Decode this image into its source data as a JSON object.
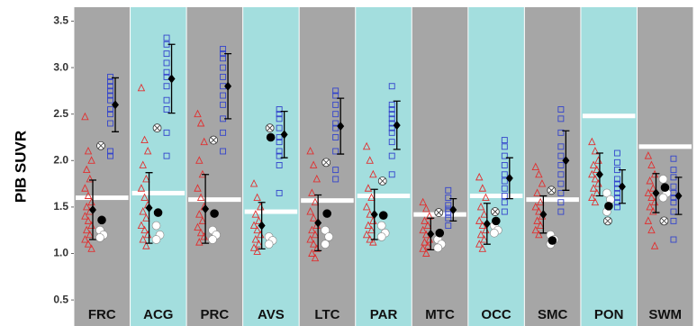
{
  "chart_data": {
    "type": "strip",
    "ylabel": "PIB SUVR",
    "categories": [
      "FRC",
      "ACG",
      "PRC",
      "AVS",
      "LTC",
      "PAR",
      "MTC",
      "OCC",
      "SMC",
      "PON",
      "SWM"
    ],
    "band_colors": [
      "#a6a6a6",
      "#a3dede"
    ],
    "ylim": [
      0.22,
      3.65
    ],
    "yticks": [
      0.5,
      {
        "value": 1,
        "label": "1.0"
      },
      1.5,
      {
        "value": 2,
        "label": "2.0"
      },
      2.5,
      {
        "value": 3,
        "label": "3.0"
      },
      3.5
    ],
    "threshold": {
      "color": "#ffffff",
      "values": [
        1.6,
        1.65,
        1.58,
        1.45,
        1.57,
        1.62,
        1.42,
        1.62,
        1.58,
        2.48,
        2.15
      ]
    },
    "series": [
      {
        "marker": "triangle-open",
        "color": "#e03030",
        "values": [
          [
            2.47,
            2.1,
            2.0,
            1.9,
            1.8,
            1.7,
            1.62,
            1.55,
            1.5,
            1.45,
            1.4,
            1.35,
            1.3,
            1.25,
            1.2,
            1.15,
            1.1,
            1.05
          ],
          [
            2.78,
            2.22,
            2.1,
            1.95,
            1.8,
            1.7,
            1.6,
            1.52,
            1.45,
            1.38,
            1.3,
            1.25,
            1.2,
            1.15,
            1.08
          ],
          [
            2.5,
            2.4,
            2.2,
            2.0,
            1.85,
            1.7,
            1.6,
            1.5,
            1.42,
            1.35,
            1.28,
            1.22,
            1.18,
            1.12
          ],
          [
            1.75,
            1.6,
            1.5,
            1.42,
            1.35,
            1.3,
            1.25,
            1.2,
            1.15,
            1.1,
            1.06,
            1.02
          ],
          [
            2.1,
            1.95,
            1.8,
            1.65,
            1.55,
            1.45,
            1.38,
            1.3,
            1.25,
            1.2,
            1.15,
            1.1,
            1.05,
            1.0,
            0.95
          ],
          [
            2.15,
            2.0,
            1.85,
            1.7,
            1.6,
            1.5,
            1.42,
            1.35,
            1.3,
            1.25,
            1.2,
            1.15,
            1.12
          ],
          [
            1.55,
            1.48,
            1.4,
            1.35,
            1.3,
            1.25,
            1.2,
            1.15,
            1.12,
            1.08,
            1.05,
            1.0
          ],
          [
            1.82,
            1.7,
            1.6,
            1.5,
            1.42,
            1.35,
            1.3,
            1.25,
            1.2,
            1.15,
            1.1,
            1.05
          ],
          [
            1.93,
            1.85,
            1.75,
            1.65,
            1.55,
            1.5,
            1.45,
            1.4,
            1.35,
            1.3,
            1.25,
            1.2
          ],
          [
            2.2,
            2.1,
            2.0,
            1.95,
            1.9,
            1.85,
            1.8,
            1.75,
            1.7,
            1.65,
            1.6,
            1.55
          ],
          [
            2.05,
            1.95,
            1.85,
            1.78,
            1.7,
            1.65,
            1.6,
            1.55,
            1.5,
            1.45,
            1.35,
            1.25,
            1.08
          ]
        ]
      },
      {
        "marker": "diamond",
        "color": "#000000",
        "values": [
          1.47,
          1.49,
          1.48,
          1.3,
          1.33,
          1.42,
          1.21,
          1.32,
          1.42,
          1.85,
          1.65
        ],
        "errors": [
          0.32,
          0.38,
          0.37,
          0.25,
          0.3,
          0.27,
          0.17,
          0.22,
          0.2,
          0.23,
          0.21
        ]
      },
      {
        "marker": "circle",
        "color": "#ffffff",
        "values": [
          [
            1.25,
            1.2,
            1.17
          ],
          [
            1.3,
            1.2,
            1.15
          ],
          [
            1.25,
            1.2,
            1.15
          ],
          [
            1.18,
            1.14,
            1.1
          ],
          [
            1.25,
            1.18,
            1.1
          ],
          [
            1.3,
            1.22,
            1.18
          ],
          [
            1.15,
            1.1,
            1.06
          ],
          [
            1.3,
            1.25,
            1.22
          ],
          [
            1.2,
            1.15,
            1.1
          ],
          [
            1.65,
            1.58,
            1.45
          ],
          [
            1.8,
            1.65,
            1.6
          ]
        ]
      },
      {
        "marker": "circle",
        "color": "#000000",
        "values": [
          1.36,
          1.44,
          1.43,
          2.25,
          1.43,
          1.41,
          1.22,
          1.35,
          1.14,
          1.51,
          1.71
        ]
      },
      {
        "marker": "crossed-circle",
        "color": "#ffffff",
        "values": [
          2.16,
          2.35,
          2.22,
          2.35,
          1.98,
          1.78,
          1.44,
          1.45,
          1.68,
          1.35,
          1.35
        ]
      },
      {
        "marker": "square-open",
        "color": "#3344cc",
        "values": [
          [
            2.9,
            2.85,
            2.8,
            2.75,
            2.7,
            2.65,
            2.55,
            2.5,
            2.4,
            2.1,
            2.05
          ],
          [
            3.32,
            3.25,
            3.15,
            3.05,
            2.95,
            2.9,
            2.8,
            2.65,
            2.55,
            2.3,
            2.05
          ],
          [
            3.2,
            3.15,
            3.1,
            3.0,
            2.9,
            2.8,
            2.7,
            2.6,
            2.45,
            2.3,
            2.1
          ],
          [
            2.55,
            2.5,
            2.45,
            2.35,
            2.25,
            2.2,
            2.1,
            2.05,
            1.95,
            1.65
          ],
          [
            2.75,
            2.7,
            2.6,
            2.5,
            2.4,
            2.35,
            2.25,
            2.1,
            1.9,
            1.8
          ],
          [
            2.8,
            2.6,
            2.55,
            2.5,
            2.45,
            2.4,
            2.35,
            2.3,
            2.2,
            2.05,
            1.85
          ],
          [
            1.68,
            1.6,
            1.52,
            1.48,
            1.45,
            1.42,
            1.38,
            1.3
          ],
          [
            2.22,
            2.15,
            2.05,
            1.95,
            1.85,
            1.78,
            1.7,
            1.62,
            1.55,
            1.45
          ],
          [
            2.55,
            2.45,
            2.3,
            2.15,
            2.05,
            1.95,
            1.85,
            1.75,
            1.65,
            1.55,
            1.45
          ],
          [
            2.08,
            1.98,
            1.9,
            1.8,
            1.75,
            1.7,
            1.65,
            1.6,
            1.55,
            1.5
          ],
          [
            2.02,
            1.9,
            1.82,
            1.72,
            1.65,
            1.6,
            1.55,
            1.45,
            1.35,
            1.15
          ]
        ]
      },
      {
        "marker": "diamond",
        "color": "#000000",
        "values": [
          2.6,
          2.88,
          2.8,
          2.28,
          2.37,
          2.38,
          1.47,
          1.81,
          2.0,
          1.72,
          1.62
        ],
        "errors": [
          0.29,
          0.37,
          0.35,
          0.25,
          0.3,
          0.26,
          0.12,
          0.22,
          0.32,
          0.18,
          0.2
        ]
      }
    ]
  }
}
